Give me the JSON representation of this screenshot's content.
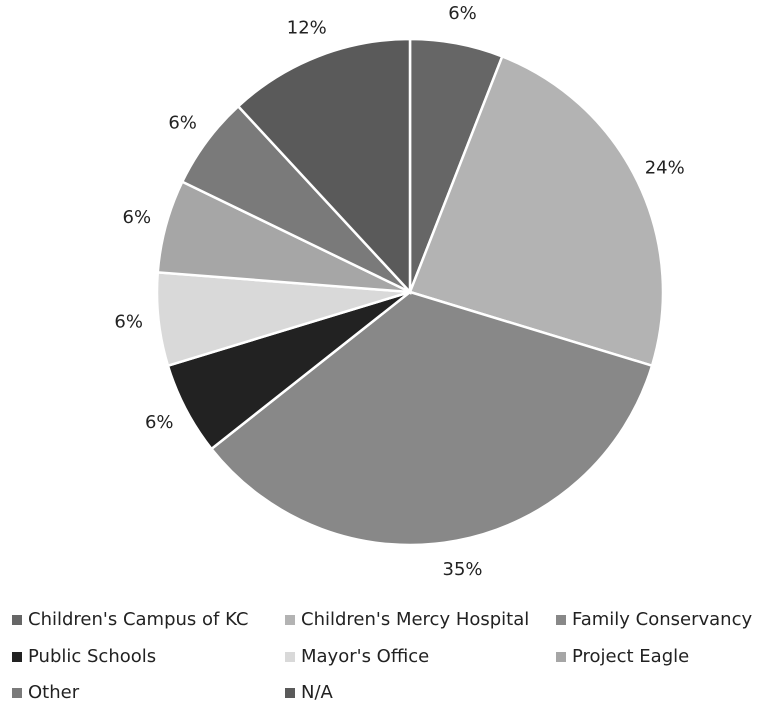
{
  "chart_data": {
    "type": "pie",
    "categories": [
      "Children's Campus of KC",
      "Children's Mercy Hospital",
      "Family Conservancy",
      "Public Schools",
      "Mayor's Office",
      "Project Eagle",
      "Other",
      "N/A"
    ],
    "values": [
      6,
      24,
      35,
      6,
      6,
      6,
      6,
      12
    ],
    "value_labels": [
      "6%",
      "24%",
      "35%",
      "6%",
      "6%",
      "6%",
      "6%",
      "12%"
    ],
    "colors": [
      "#666666",
      "#b3b3b3",
      "#888888",
      "#222222",
      "#d9d9d9",
      "#a6a6a6",
      "#7a7a7a",
      "#5a5a5a"
    ],
    "legend": "bottom"
  }
}
